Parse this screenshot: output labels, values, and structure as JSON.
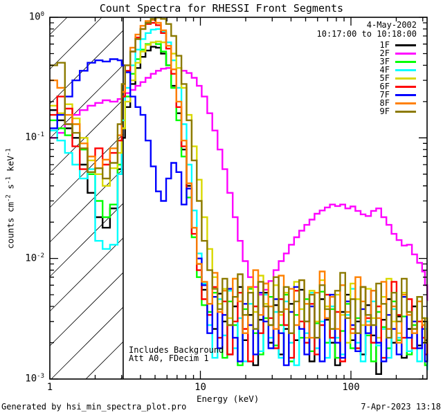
{
  "title": "Count Spectra for RHESSI Front Segments",
  "header": {
    "date": "4-May-2002",
    "time_range": "10:17:00 to 10:18:00"
  },
  "annotations": {
    "line1": "Includes Background",
    "line2": "Att A0, FDecim 1"
  },
  "axes": {
    "xlabel": "Energy (keV)",
    "ylabel": "counts cm^-2 s^-1 keV^-1"
  },
  "footer": {
    "left": "Generated by hsi_min_spectra_plot.pro",
    "right": "7-Apr-2023 13:18"
  },
  "chart_data": {
    "type": "line",
    "subtype": "step-histogram",
    "title": "Count Spectra for RHESSI Front Segments",
    "xlabel": "Energy (keV)",
    "ylabel": "counts cm^-2 s^-1 keV^-1",
    "x_scale": "log",
    "y_scale": "log",
    "xlim": [
      1,
      322
    ],
    "ylim": [
      0.001,
      1.0
    ],
    "grid": false,
    "x_ticks": [
      {
        "value": 1,
        "label": "1"
      },
      {
        "value": 10,
        "label": "10"
      },
      {
        "value": 100,
        "label": "100"
      }
    ],
    "y_ticks": [
      {
        "value": 1,
        "label": "10^0"
      },
      {
        "value": 0.1,
        "label": "10^-1"
      },
      {
        "value": 0.01,
        "label": "10^-2"
      },
      {
        "value": 0.001,
        "label": "10^-3"
      }
    ],
    "hatched_region": {
      "x_from": 1.0,
      "x_to": 3.07,
      "style": "diagonal-hatch",
      "boundary_line": true
    },
    "legend_position": "top-right-inside",
    "legend": [
      {
        "label": "1F",
        "color": "#000000"
      },
      {
        "label": "2F",
        "color": "#ff00ff"
      },
      {
        "label": "3F",
        "color": "#00ff00"
      },
      {
        "label": "4F",
        "color": "#00ffff"
      },
      {
        "label": "5F",
        "color": "#d9d900"
      },
      {
        "label": "6F",
        "color": "#ff0000"
      },
      {
        "label": "7F",
        "color": "#0000ff"
      },
      {
        "label": "8F",
        "color": "#ff8000"
      },
      {
        "label": "9F",
        "color": "#8c7a00"
      }
    ],
    "energies": [
      1.0,
      1.12,
      1.26,
      1.41,
      1.58,
      1.78,
      2.0,
      2.24,
      2.51,
      2.82,
      3.0,
      3.16,
      3.42,
      3.7,
      4.0,
      4.32,
      4.68,
      5.06,
      5.47,
      5.92,
      6.4,
      6.92,
      7.48,
      8.09,
      8.75,
      9.46,
      10.2,
      11.1,
      12.0,
      13.0,
      14.0,
      15.1,
      16.4,
      17.7,
      19.1,
      20.7,
      22.4,
      24.2,
      26.2,
      28.3,
      30.6,
      33.1,
      35.8,
      38.7,
      41.9,
      45.3,
      49.0,
      53.0,
      57.3,
      62.0,
      67.0,
      72.5,
      78.4,
      84.8,
      91.7,
      99.2,
      107,
      116,
      125,
      136,
      147,
      159,
      172,
      186,
      201,
      217,
      235,
      254,
      275,
      297,
      310,
      321
    ],
    "series": [
      {
        "name": "1F",
        "color": "#000000",
        "values": [
          0.17,
          0.14,
          0.12,
          0.1,
          0.06,
          0.035,
          0.022,
          0.018,
          0.026,
          0.055,
          0.1,
          0.18,
          0.28,
          0.38,
          0.47,
          0.53,
          0.57,
          0.56,
          0.5,
          0.4,
          0.27,
          0.16,
          0.08,
          0.04,
          0.018,
          0.009,
          0.0055,
          0.0042,
          0.0026,
          0.0051,
          0.003,
          0.0016,
          0.004,
          0.0058,
          0.0021,
          0.0034,
          0.0013,
          0.0031,
          0.0052,
          0.002,
          0.0041,
          0.0016,
          0.0026,
          0.0042,
          0.0021,
          0.0055,
          0.003,
          0.0014,
          0.0022,
          0.0046,
          0.0031,
          0.002,
          0.0013,
          0.0036,
          0.005,
          0.0021,
          0.003,
          0.0016,
          0.0041,
          0.0023,
          0.0011,
          0.0031,
          0.0046,
          0.002,
          0.0033,
          0.0015,
          0.0026,
          0.004,
          0.0019,
          0.003,
          0.0021,
          0.0013
        ]
      },
      {
        "name": "2F",
        "color": "#ff00ff",
        "values": [
          0.1,
          0.11,
          0.13,
          0.155,
          0.17,
          0.185,
          0.195,
          0.205,
          0.2,
          0.21,
          0.22,
          0.235,
          0.25,
          0.27,
          0.29,
          0.315,
          0.34,
          0.36,
          0.375,
          0.38,
          0.37,
          0.38,
          0.36,
          0.345,
          0.315,
          0.27,
          0.22,
          0.16,
          0.115,
          0.08,
          0.055,
          0.035,
          0.022,
          0.014,
          0.0095,
          0.007,
          0.0058,
          0.005,
          0.0055,
          0.0065,
          0.008,
          0.0095,
          0.011,
          0.013,
          0.015,
          0.017,
          0.019,
          0.021,
          0.0235,
          0.025,
          0.0265,
          0.028,
          0.0272,
          0.028,
          0.026,
          0.027,
          0.0248,
          0.0232,
          0.0225,
          0.0248,
          0.026,
          0.022,
          0.019,
          0.016,
          0.0142,
          0.0128,
          0.013,
          0.0108,
          0.0092,
          0.0078,
          0.006,
          0.0045
        ]
      },
      {
        "name": "3F",
        "color": "#00ff00",
        "values": [
          0.14,
          0.12,
          0.105,
          0.13,
          0.08,
          0.05,
          0.03,
          0.022,
          0.028,
          0.06,
          0.12,
          0.22,
          0.34,
          0.45,
          0.54,
          0.6,
          0.62,
          0.6,
          0.52,
          0.4,
          0.26,
          0.14,
          0.07,
          0.032,
          0.015,
          0.007,
          0.0041,
          0.0036,
          0.0052,
          0.0022,
          0.0015,
          0.0044,
          0.0028,
          0.0013,
          0.0038,
          0.0056,
          0.0024,
          0.0016,
          0.0032,
          0.0048,
          0.0019,
          0.0028,
          0.005,
          0.0014,
          0.0034,
          0.0022,
          0.0046,
          0.0017,
          0.0029,
          0.0053,
          0.002,
          0.0038,
          0.0015,
          0.0025,
          0.0042,
          0.0018,
          0.0032,
          0.0058,
          0.0023,
          0.0014,
          0.0036,
          0.0027,
          0.0018,
          0.0044,
          0.0021,
          0.0033,
          0.0016,
          0.0028,
          0.0048,
          0.002,
          0.0013,
          0.0018
        ]
      },
      {
        "name": "4F",
        "color": "#00ffff",
        "values": [
          0.115,
          0.095,
          0.075,
          0.06,
          0.046,
          0.055,
          0.014,
          0.012,
          0.013,
          0.05,
          0.14,
          0.26,
          0.4,
          0.54,
          0.66,
          0.74,
          0.79,
          0.8,
          0.76,
          0.62,
          0.44,
          0.26,
          0.13,
          0.06,
          0.025,
          0.011,
          0.0062,
          0.0028,
          0.0015,
          0.0046,
          0.0023,
          0.0054,
          0.0018,
          0.0032,
          0.0014,
          0.0042,
          0.0026,
          0.0017,
          0.005,
          0.0022,
          0.0036,
          0.0015,
          0.0044,
          0.002,
          0.0013,
          0.0038,
          0.0024,
          0.0052,
          0.0018,
          0.003,
          0.0015,
          0.004,
          0.0022,
          0.0016,
          0.0034,
          0.0056,
          0.002,
          0.0014,
          0.003,
          0.0044,
          0.0019,
          0.0026,
          0.0015,
          0.0038,
          0.0022,
          0.0048,
          0.0017,
          0.0024,
          0.0014,
          0.0032,
          0.0026,
          0.0012
        ]
      },
      {
        "name": "5F",
        "color": "#d9d900",
        "values": [
          0.185,
          0.16,
          0.19,
          0.145,
          0.1,
          0.065,
          0.05,
          0.04,
          0.056,
          0.075,
          0.12,
          0.2,
          0.3,
          0.42,
          0.52,
          0.59,
          0.62,
          0.63,
          0.62,
          0.58,
          0.5,
          0.38,
          0.26,
          0.155,
          0.085,
          0.045,
          0.022,
          0.012,
          0.007,
          0.0042,
          0.0056,
          0.0032,
          0.0068,
          0.0044,
          0.0026,
          0.0058,
          0.0036,
          0.0072,
          0.0042,
          0.0028,
          0.006,
          0.0034,
          0.0052,
          0.0024,
          0.0064,
          0.0038,
          0.0022,
          0.0054,
          0.003,
          0.0066,
          0.004,
          0.0026,
          0.005,
          0.0034,
          0.002,
          0.0062,
          0.0046,
          0.0028,
          0.0056,
          0.0032,
          0.0022,
          0.0048,
          0.0068,
          0.003,
          0.0024,
          0.0052,
          0.0036,
          0.0026,
          0.0044,
          0.002,
          0.0032,
          0.0024
        ]
      },
      {
        "name": "6F",
        "color": "#ff0000",
        "values": [
          0.155,
          0.22,
          0.175,
          0.085,
          0.055,
          0.07,
          0.082,
          0.06,
          0.075,
          0.095,
          0.22,
          0.36,
          0.52,
          0.68,
          0.8,
          0.88,
          0.9,
          0.86,
          0.74,
          0.55,
          0.34,
          0.18,
          0.085,
          0.038,
          0.016,
          0.008,
          0.0046,
          0.0034,
          0.0058,
          0.0022,
          0.0044,
          0.0016,
          0.003,
          0.0052,
          0.0026,
          0.0014,
          0.004,
          0.0024,
          0.0062,
          0.0032,
          0.0018,
          0.0046,
          0.0028,
          0.0015,
          0.0054,
          0.003,
          0.002,
          0.0042,
          0.0016,
          0.0028,
          0.005,
          0.0022,
          0.0036,
          0.0014,
          0.0044,
          0.0026,
          0.0018,
          0.0058,
          0.0032,
          0.002,
          0.004,
          0.0015,
          0.0026,
          0.0064,
          0.0034,
          0.0022,
          0.0046,
          0.0018,
          0.003,
          0.0022,
          0.0016,
          0.0024
        ]
      },
      {
        "name": "7F",
        "color": "#0000ff",
        "values": [
          0.12,
          0.155,
          0.22,
          0.3,
          0.36,
          0.42,
          0.44,
          0.43,
          0.45,
          0.44,
          0.4,
          0.35,
          0.22,
          0.18,
          0.155,
          0.095,
          0.058,
          0.036,
          0.03,
          0.046,
          0.062,
          0.052,
          0.028,
          0.038,
          0.018,
          0.01,
          0.006,
          0.0024,
          0.0048,
          0.0018,
          0.0034,
          0.0056,
          0.0022,
          0.0014,
          0.0042,
          0.0028,
          0.0016,
          0.0052,
          0.003,
          0.0018,
          0.0046,
          0.0024,
          0.0013,
          0.0036,
          0.0058,
          0.0026,
          0.0016,
          0.004,
          0.0022,
          0.0014,
          0.0032,
          0.005,
          0.002,
          0.0015,
          0.0044,
          0.0028,
          0.0017,
          0.0038,
          0.0024,
          0.0054,
          0.002,
          0.0014,
          0.0034,
          0.0026,
          0.0016,
          0.0048,
          0.0022,
          0.003,
          0.0018,
          0.0026,
          0.0014,
          0.0016
        ]
      },
      {
        "name": "8F",
        "color": "#ff8000",
        "values": [
          0.3,
          0.26,
          0.155,
          0.13,
          0.09,
          0.07,
          0.056,
          0.066,
          0.082,
          0.105,
          0.24,
          0.4,
          0.56,
          0.72,
          0.85,
          0.93,
          0.95,
          0.9,
          0.78,
          0.58,
          0.37,
          0.2,
          0.095,
          0.042,
          0.018,
          0.009,
          0.0064,
          0.0042,
          0.0076,
          0.0036,
          0.0054,
          0.0028,
          0.0068,
          0.0044,
          0.0024,
          0.0058,
          0.008,
          0.0034,
          0.0062,
          0.004,
          0.0026,
          0.0072,
          0.0038,
          0.0056,
          0.0028,
          0.0066,
          0.0042,
          0.0022,
          0.0052,
          0.0078,
          0.0032,
          0.0048,
          0.0026,
          0.006,
          0.0036,
          0.0024,
          0.007,
          0.0044,
          0.0028,
          0.0054,
          0.0032,
          0.0064,
          0.0026,
          0.004,
          0.002,
          0.005,
          0.0034,
          0.0024,
          0.0044,
          0.0028,
          0.002,
          0.003
        ]
      },
      {
        "name": "9F",
        "color": "#8c7a00",
        "values": [
          0.4,
          0.42,
          0.13,
          0.11,
          0.082,
          0.052,
          0.056,
          0.046,
          0.062,
          0.13,
          0.28,
          0.4,
          0.52,
          0.66,
          0.8,
          0.9,
          0.97,
          0.995,
          0.97,
          0.88,
          0.7,
          0.48,
          0.28,
          0.14,
          0.065,
          0.03,
          0.014,
          0.008,
          0.0056,
          0.0038,
          0.0068,
          0.0028,
          0.0048,
          0.0074,
          0.0034,
          0.0052,
          0.0026,
          0.0064,
          0.004,
          0.0028,
          0.007,
          0.0036,
          0.0058,
          0.0024,
          0.0044,
          0.0066,
          0.003,
          0.005,
          0.0022,
          0.006,
          0.0038,
          0.0026,
          0.0054,
          0.0076,
          0.0032,
          0.0046,
          0.0024,
          0.0058,
          0.0034,
          0.0028,
          0.0062,
          0.0042,
          0.0022,
          0.0052,
          0.003,
          0.0068,
          0.0036,
          0.0026,
          0.0048,
          0.0032,
          0.002,
          0.003
        ]
      }
    ]
  }
}
